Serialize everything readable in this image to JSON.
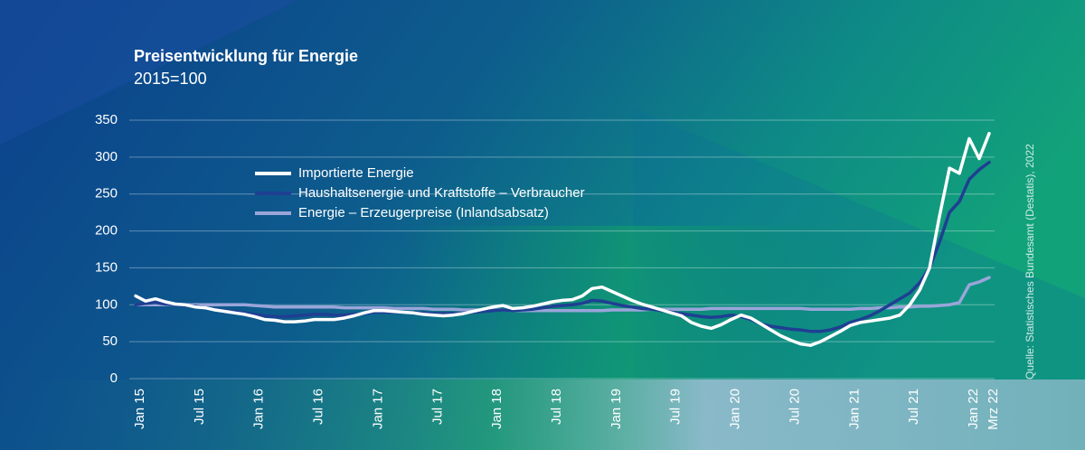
{
  "chart_data": {
    "type": "line",
    "title": "Preisentwicklung für Energie",
    "subtitle": "2015=100",
    "source": "Quelle: Statistisches Bundesamt (Destatis), 2022",
    "categories": [
      "Jan 15",
      null,
      null,
      null,
      null,
      null,
      "Jul 15",
      null,
      null,
      null,
      null,
      null,
      "Jan 16",
      null,
      null,
      null,
      null,
      null,
      "Jul 16",
      null,
      null,
      null,
      null,
      null,
      "Jan 17",
      null,
      null,
      null,
      null,
      null,
      "Jul 17",
      null,
      null,
      null,
      null,
      null,
      "Jan 18",
      null,
      null,
      null,
      null,
      null,
      "Jul 18",
      null,
      null,
      null,
      null,
      null,
      "Jan 19",
      null,
      null,
      null,
      null,
      null,
      "Jul 19",
      null,
      null,
      null,
      null,
      null,
      "Jan 20",
      null,
      null,
      null,
      null,
      null,
      "Jul 20",
      null,
      null,
      null,
      null,
      null,
      "Jan 21",
      null,
      null,
      null,
      null,
      null,
      "Jul 21",
      null,
      null,
      null,
      null,
      null,
      "Jan 22",
      null,
      "Mrz 22"
    ],
    "series": [
      {
        "name": "Importierte Energie",
        "color": "#ffffff",
        "values": [
          112,
          105,
          108,
          104,
          101,
          100,
          97,
          96,
          93,
          91,
          89,
          87,
          84,
          80,
          79,
          77,
          77,
          78,
          80,
          80,
          80,
          82,
          85,
          89,
          92,
          92,
          91,
          90,
          89,
          87,
          86,
          85,
          86,
          88,
          91,
          94,
          97,
          99,
          95,
          96,
          98,
          101,
          104,
          106,
          107,
          112,
          122,
          124,
          118,
          112,
          106,
          101,
          97,
          93,
          89,
          85,
          76,
          71,
          68,
          73,
          80,
          86,
          82,
          74,
          66,
          58,
          52,
          47,
          45,
          50,
          57,
          64,
          72,
          76,
          78,
          80,
          82,
          86,
          100,
          120,
          150,
          220,
          285,
          278,
          325,
          298,
          332
        ]
      },
      {
        "name": "Haushaltsenergie und Kraftstoffe – Verbraucher",
        "color": "#1f3f92",
        "values": [
          100,
          102,
          103,
          101,
          100,
          99,
          98,
          96,
          94,
          92,
          91,
          89,
          87,
          85,
          84,
          84,
          85,
          86,
          87,
          87,
          86,
          86,
          87,
          88,
          90,
          90,
          90,
          90,
          89,
          89,
          88,
          88,
          88,
          89,
          90,
          91,
          92,
          93,
          92,
          93,
          94,
          96,
          98,
          99,
          100,
          102,
          106,
          105,
          102,
          99,
          97,
          95,
          94,
          92,
          90,
          88,
          86,
          84,
          83,
          84,
          86,
          84,
          80,
          74,
          71,
          69,
          67,
          66,
          64,
          64,
          66,
          70,
          76,
          80,
          85,
          92,
          100,
          108,
          116,
          130,
          150,
          185,
          225,
          240,
          270,
          283,
          293
        ]
      },
      {
        "name": "Energie – Erzeugerpreise (Inlandsabsatz)",
        "color": "#9aa5d9",
        "values": [
          100,
          100,
          100,
          100,
          100,
          100,
          100,
          100,
          100,
          100,
          100,
          100,
          99,
          98,
          97,
          97,
          97,
          97,
          97,
          97,
          97,
          96,
          96,
          96,
          96,
          96,
          95,
          95,
          95,
          95,
          94,
          94,
          94,
          93,
          93,
          93,
          93,
          93,
          92,
          92,
          92,
          92,
          92,
          92,
          92,
          92,
          92,
          92,
          93,
          93,
          93,
          93,
          94,
          94,
          94,
          94,
          94,
          94,
          95,
          95,
          95,
          95,
          95,
          95,
          95,
          95,
          95,
          95,
          94,
          94,
          94,
          94,
          94,
          95,
          95,
          96,
          96,
          97,
          97,
          98,
          98,
          99,
          100,
          103,
          127,
          131,
          137
        ]
      }
    ],
    "ylim": [
      0,
      350
    ],
    "yticks": [
      0,
      50,
      100,
      150,
      200,
      250,
      300,
      350
    ],
    "grid": true,
    "legend": "upper left"
  }
}
